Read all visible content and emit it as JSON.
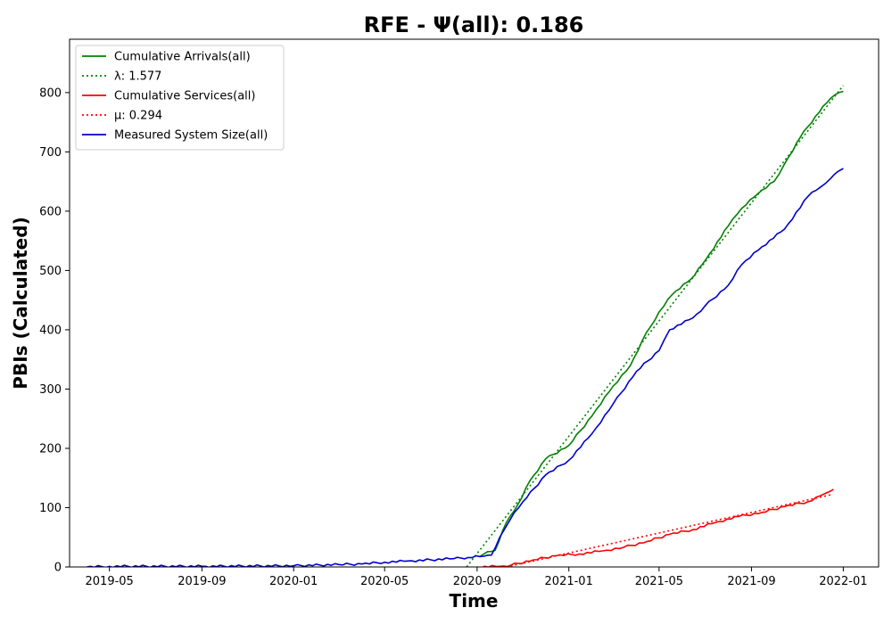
{
  "chart_data": {
    "type": "line",
    "title": "RFE -  Ψ(all): 0.186",
    "xlabel": "Time",
    "ylabel": "PBIs (Calculated)",
    "xlim": [
      "2019-03-09",
      "2022-02-17"
    ],
    "ylim": [
      0,
      890
    ],
    "x_ticks": [
      "2019-05",
      "2019-09",
      "2020-01",
      "2020-05",
      "2020-09",
      "2021-01",
      "2021-05",
      "2021-09",
      "2022-01"
    ],
    "y_ticks": [
      0,
      100,
      200,
      300,
      400,
      500,
      600,
      700,
      800
    ],
    "legend_position": "upper-left",
    "grid": false,
    "series": [
      {
        "name": "Cumulative Arrivals(all)",
        "color": "#008000",
        "style": "solid",
        "points": [
          [
            "2020-09-05",
            18
          ],
          [
            "2020-09-10",
            22
          ],
          [
            "2020-09-25",
            28
          ],
          [
            "2020-10-10",
            75
          ],
          [
            "2020-10-25",
            105
          ],
          [
            "2020-11-10",
            145
          ],
          [
            "2020-12-01",
            182
          ],
          [
            "2021-01-01",
            205
          ],
          [
            "2021-02-01",
            255
          ],
          [
            "2021-03-01",
            305
          ],
          [
            "2021-03-24",
            340
          ],
          [
            "2021-04-08",
            380
          ],
          [
            "2021-05-01",
            430
          ],
          [
            "2021-05-19",
            460
          ],
          [
            "2021-06-12",
            485
          ],
          [
            "2021-07-03",
            520
          ],
          [
            "2021-08-01",
            575
          ],
          [
            "2021-08-19",
            605
          ],
          [
            "2021-09-10",
            630
          ],
          [
            "2021-10-01",
            650
          ],
          [
            "2021-10-15",
            680
          ],
          [
            "2021-11-05",
            725
          ],
          [
            "2021-11-25",
            760
          ],
          [
            "2021-12-15",
            790
          ],
          [
            "2021-12-26",
            800
          ],
          [
            "2022-01-01",
            802
          ]
        ]
      },
      {
        "name": "λ: 1.577",
        "color": "#008000",
        "style": "dotted",
        "points": [
          [
            "2020-08-18",
            0
          ],
          [
            "2022-01-01",
            812
          ]
        ]
      },
      {
        "name": "Cumulative Services(all)",
        "color": "#ff0000",
        "style": "solid",
        "points": [
          [
            "2020-09-01",
            0
          ],
          [
            "2020-10-01",
            1
          ],
          [
            "2020-10-16",
            3
          ],
          [
            "2020-11-15",
            12
          ],
          [
            "2020-12-15",
            19
          ],
          [
            "2021-01-15",
            22
          ],
          [
            "2021-02-15",
            27
          ],
          [
            "2021-03-15",
            33
          ],
          [
            "2021-04-15",
            43
          ],
          [
            "2021-05-15",
            55
          ],
          [
            "2021-06-15",
            63
          ],
          [
            "2021-07-15",
            75
          ],
          [
            "2021-08-15",
            85
          ],
          [
            "2021-09-15",
            92
          ],
          [
            "2021-10-15",
            102
          ],
          [
            "2021-11-15",
            110
          ],
          [
            "2021-12-01",
            120
          ],
          [
            "2021-12-15",
            128
          ],
          [
            "2021-12-19",
            131
          ]
        ]
      },
      {
        "name": "μ: 0.294",
        "color": "#ff0000",
        "style": "dotted",
        "points": [
          [
            "2020-10-10",
            0
          ],
          [
            "2021-12-17",
            122
          ]
        ]
      },
      {
        "name": "Measured System Size(all)",
        "color": "#0000cc",
        "style": "solid",
        "points": [
          [
            "2019-04-01",
            0
          ],
          [
            "2019-05-01",
            1
          ],
          [
            "2019-09-01",
            1
          ],
          [
            "2020-01-01",
            2
          ],
          [
            "2020-03-01",
            4
          ],
          [
            "2020-04-01",
            5
          ],
          [
            "2020-05-01",
            8
          ],
          [
            "2020-06-01",
            10
          ],
          [
            "2020-08-01",
            14
          ],
          [
            "2020-08-20",
            16
          ],
          [
            "2020-09-10",
            18
          ],
          [
            "2020-09-20",
            20
          ],
          [
            "2020-10-01",
            50
          ],
          [
            "2020-10-15",
            80
          ],
          [
            "2020-11-01",
            110
          ],
          [
            "2020-12-01",
            155
          ],
          [
            "2021-01-01",
            180
          ],
          [
            "2021-02-01",
            225
          ],
          [
            "2021-03-01",
            275
          ],
          [
            "2021-04-01",
            330
          ],
          [
            "2021-05-01",
            365
          ],
          [
            "2021-05-15",
            400
          ],
          [
            "2021-06-15",
            420
          ],
          [
            "2021-07-01",
            440
          ],
          [
            "2021-08-01",
            475
          ],
          [
            "2021-08-19",
            510
          ],
          [
            "2021-09-15",
            540
          ],
          [
            "2021-10-15",
            570
          ],
          [
            "2021-11-15",
            625
          ],
          [
            "2021-12-01",
            640
          ],
          [
            "2021-12-15",
            655
          ],
          [
            "2021-12-25",
            667
          ],
          [
            "2022-01-01",
            672
          ]
        ]
      }
    ]
  }
}
